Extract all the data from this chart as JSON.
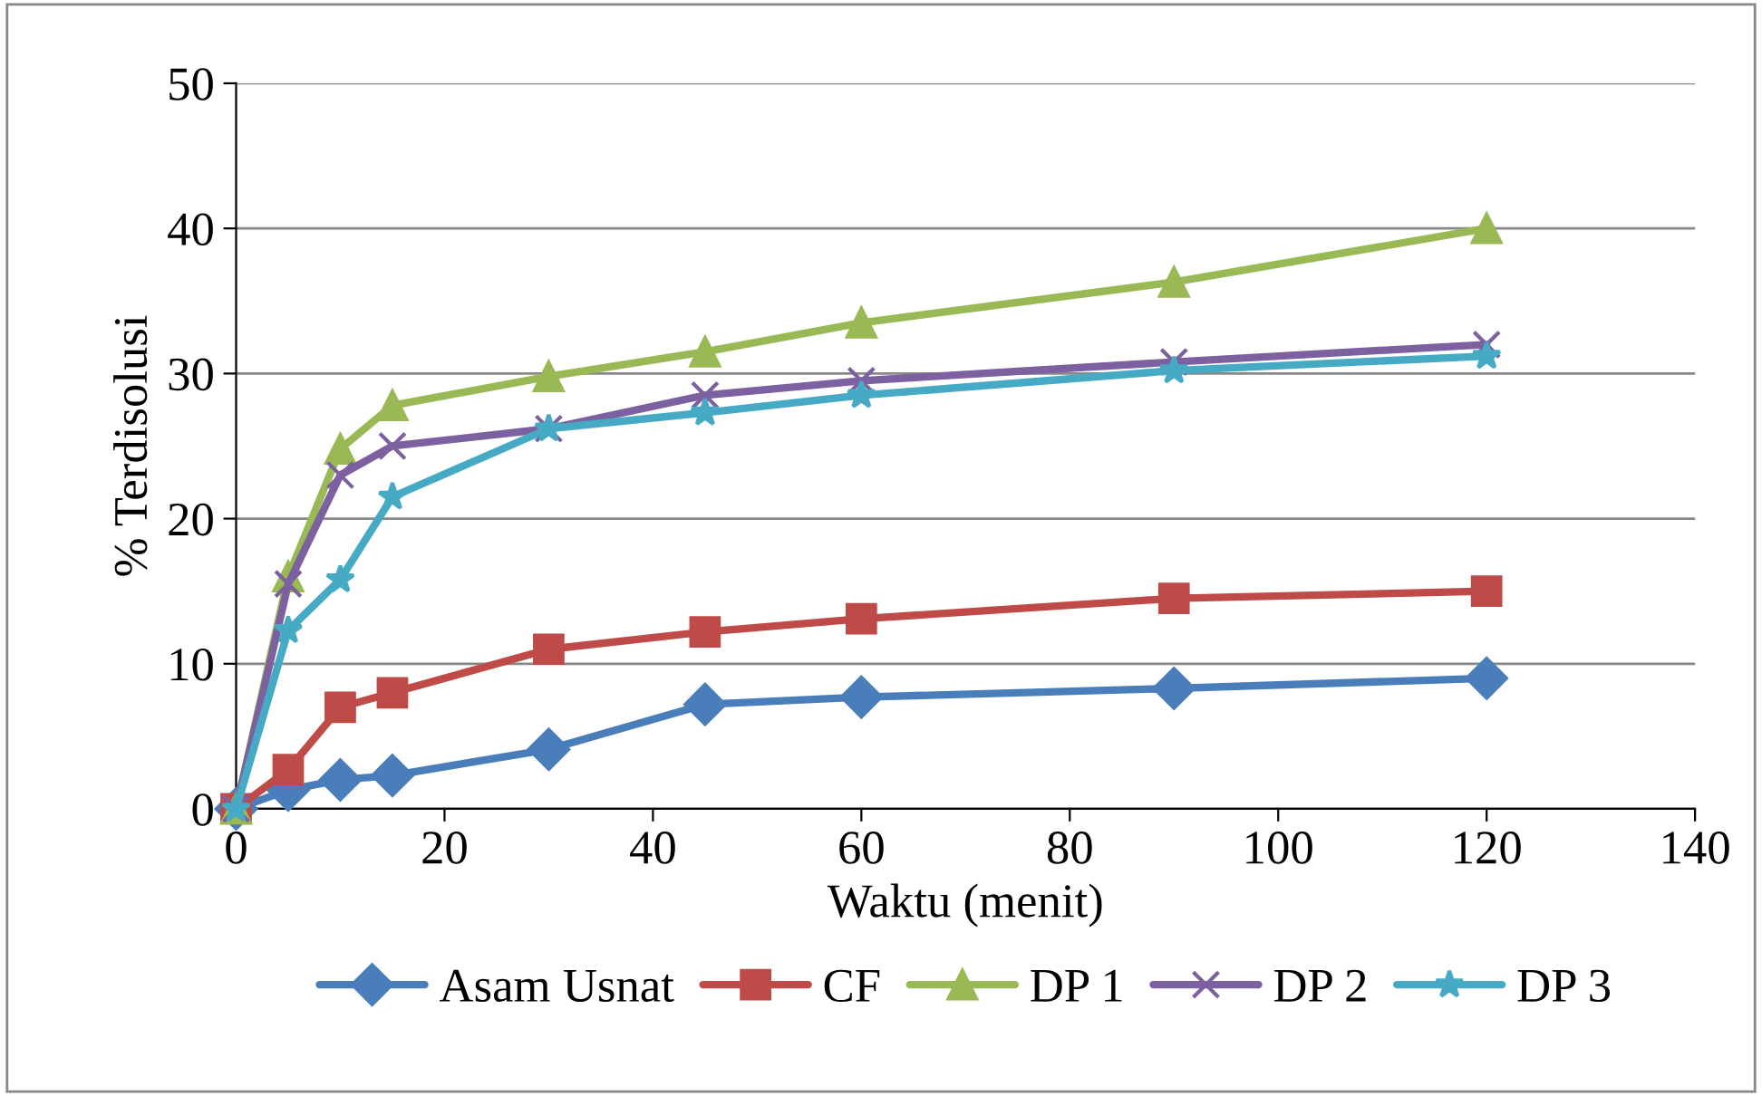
{
  "chart_data": {
    "type": "line",
    "xlabel": "Waktu (menit)",
    "ylabel": "% Terdisolusi",
    "x": [
      0,
      5,
      10,
      15,
      30,
      45,
      60,
      90,
      120
    ],
    "series": [
      {
        "name": "Asam Usnat",
        "color": "#4a7ebb",
        "marker": "diamond",
        "values": [
          0,
          1.3,
          2.0,
          2.3,
          4.1,
          7.2,
          7.7,
          8.3,
          9.0
        ]
      },
      {
        "name": "CF",
        "color": "#be4b48",
        "marker": "square",
        "values": [
          0,
          2.7,
          7.0,
          8.0,
          11.0,
          12.2,
          13.1,
          14.5,
          15.0
        ]
      },
      {
        "name": "DP 1",
        "color": "#98b954",
        "marker": "triangle",
        "values": [
          0,
          16.0,
          24.8,
          27.8,
          29.8,
          31.5,
          33.5,
          36.3,
          40.0
        ]
      },
      {
        "name": "DP 2",
        "color": "#7d60a0",
        "marker": "cross",
        "values": [
          0,
          15.5,
          23.0,
          25.0,
          26.2,
          28.5,
          29.5,
          30.8,
          32.0
        ]
      },
      {
        "name": "DP 3",
        "color": "#46aac5",
        "marker": "star",
        "values": [
          0,
          12.3,
          15.8,
          21.5,
          26.2,
          27.3,
          28.5,
          30.2,
          31.2
        ]
      }
    ],
    "xlim": [
      0,
      140
    ],
    "xticks": [
      0,
      20,
      40,
      60,
      80,
      100,
      120,
      140
    ],
    "ylim": [
      0,
      50
    ],
    "yticks": [
      0,
      10,
      20,
      30,
      40,
      50
    ],
    "grid": "y",
    "legend": "bottom",
    "line_style": "solid"
  }
}
